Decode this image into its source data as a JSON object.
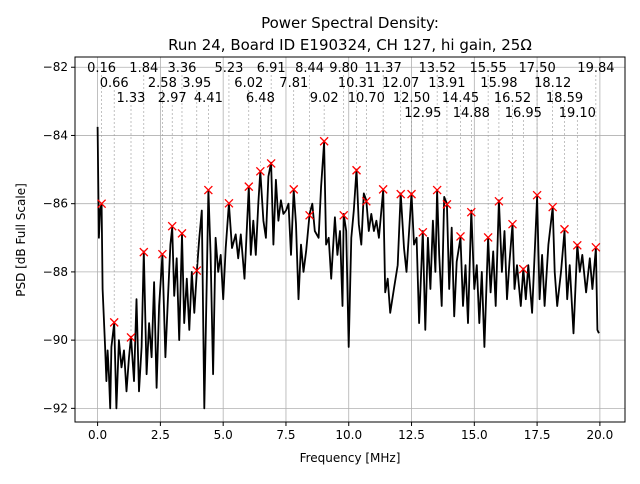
{
  "chart_data": {
    "type": "line",
    "title": "Power Spectral Density:",
    "subtitle": "Run 24, Board ID E190324, CH 127, hi gain, 25Ω",
    "xlabel": "Frequency [MHz]",
    "ylabel": "PSD [dB Full Scale]",
    "xlim": [
      -0.9,
      21.0
    ],
    "ylim": [
      -92.4,
      -81.7
    ],
    "xticks": [
      "0.0",
      "2.5",
      "5.0",
      "7.5",
      "10.0",
      "12.5",
      "15.0",
      "17.5",
      "20.0"
    ],
    "xtick_values": [
      0,
      2.5,
      5,
      7.5,
      10,
      12.5,
      15,
      17.5,
      20
    ],
    "yticks": [
      "−92",
      "−90",
      "−88",
      "−86",
      "−84",
      "−82"
    ],
    "ytick_values": [
      -92,
      -90,
      -88,
      -86,
      -84,
      -82
    ],
    "grid": true,
    "line_color": "#000000",
    "marker_color": "#ff0000",
    "trace": [
      [
        0.0,
        -83.75
      ],
      [
        0.05,
        -87
      ],
      [
        0.1,
        -86.2
      ],
      [
        0.16,
        -86.0
      ],
      [
        0.2,
        -88.5
      ],
      [
        0.3,
        -90.2
      ],
      [
        0.35,
        -91.2
      ],
      [
        0.4,
        -90.3
      ],
      [
        0.45,
        -91.0
      ],
      [
        0.5,
        -92.0
      ],
      [
        0.55,
        -90.2
      ],
      [
        0.66,
        -89.5
      ],
      [
        0.75,
        -92.0
      ],
      [
        0.85,
        -90.0
      ],
      [
        0.95,
        -90.8
      ],
      [
        1.05,
        -90.3
      ],
      [
        1.15,
        -91.5
      ],
      [
        1.25,
        -90.5
      ],
      [
        1.33,
        -89.9
      ],
      [
        1.45,
        -91.2
      ],
      [
        1.55,
        -88.8
      ],
      [
        1.65,
        -91.5
      ],
      [
        1.75,
        -90.2
      ],
      [
        1.84,
        -87.4
      ],
      [
        1.95,
        -91.0
      ],
      [
        2.05,
        -89.5
      ],
      [
        2.15,
        -90.5
      ],
      [
        2.25,
        -88.3
      ],
      [
        2.35,
        -91.4
      ],
      [
        2.45,
        -89.0
      ],
      [
        2.58,
        -87.5
      ],
      [
        2.7,
        -90.5
      ],
      [
        2.8,
        -88.8
      ],
      [
        2.9,
        -87.2
      ],
      [
        2.97,
        -86.7
      ],
      [
        3.05,
        -88.7
      ],
      [
        3.15,
        -87.6
      ],
      [
        3.25,
        -90.0
      ],
      [
        3.36,
        -86.9
      ],
      [
        3.45,
        -89.5
      ],
      [
        3.55,
        -88.2
      ],
      [
        3.65,
        -89.7
      ],
      [
        3.75,
        -88.0
      ],
      [
        3.85,
        -89.2
      ],
      [
        3.95,
        -88.0
      ],
      [
        4.05,
        -87.0
      ],
      [
        4.15,
        -86.2
      ],
      [
        4.25,
        -92.0
      ],
      [
        4.35,
        -88.2
      ],
      [
        4.41,
        -85.6
      ],
      [
        4.5,
        -87.5
      ],
      [
        4.6,
        -91.0
      ],
      [
        4.7,
        -87.0
      ],
      [
        4.8,
        -88.0
      ],
      [
        4.9,
        -87.5
      ],
      [
        5.0,
        -88.8
      ],
      [
        5.1,
        -87.3
      ],
      [
        5.23,
        -86.0
      ],
      [
        5.35,
        -87.3
      ],
      [
        5.5,
        -86.9
      ],
      [
        5.6,
        -87.6
      ],
      [
        5.7,
        -86.9
      ],
      [
        5.85,
        -88.2
      ],
      [
        6.02,
        -85.5
      ],
      [
        6.1,
        -87.5
      ],
      [
        6.2,
        -86.5
      ],
      [
        6.3,
        -87.5
      ],
      [
        6.4,
        -86.0
      ],
      [
        6.48,
        -85.05
      ],
      [
        6.6,
        -86.5
      ],
      [
        6.7,
        -87.0
      ],
      [
        6.8,
        -85.2
      ],
      [
        6.91,
        -84.8
      ],
      [
        7.0,
        -87.2
      ],
      [
        7.1,
        -85.3
      ],
      [
        7.2,
        -86.5
      ],
      [
        7.3,
        -85.9
      ],
      [
        7.4,
        -86.3
      ],
      [
        7.5,
        -86.2
      ],
      [
        7.6,
        -86.0
      ],
      [
        7.7,
        -87.5
      ],
      [
        7.81,
        -85.6
      ],
      [
        7.9,
        -86.6
      ],
      [
        8.0,
        -88.8
      ],
      [
        8.1,
        -87.2
      ],
      [
        8.2,
        -88.0
      ],
      [
        8.3,
        -87.4
      ],
      [
        8.44,
        -86.3
      ],
      [
        8.55,
        -86.0
      ],
      [
        8.65,
        -86.8
      ],
      [
        8.8,
        -87.0
      ],
      [
        8.9,
        -85.5
      ],
      [
        9.02,
        -84.2
      ],
      [
        9.1,
        -87.2
      ],
      [
        9.2,
        -87.0
      ],
      [
        9.3,
        -88.2
      ],
      [
        9.45,
        -86.4
      ],
      [
        9.55,
        -87.5
      ],
      [
        9.65,
        -86.8
      ],
      [
        9.75,
        -89.0
      ],
      [
        9.8,
        -86.3
      ],
      [
        9.9,
        -86.8
      ],
      [
        10.0,
        -90.2
      ],
      [
        10.1,
        -87.0
      ],
      [
        10.2,
        -86.2
      ],
      [
        10.31,
        -85.0
      ],
      [
        10.4,
        -86.6
      ],
      [
        10.5,
        -87.2
      ],
      [
        10.6,
        -85.7
      ],
      [
        10.7,
        -85.9
      ],
      [
        10.8,
        -86.8
      ],
      [
        10.9,
        -86.3
      ],
      [
        11.0,
        -86.8
      ],
      [
        11.1,
        -86.5
      ],
      [
        11.2,
        -87.0
      ],
      [
        11.37,
        -85.6
      ],
      [
        11.45,
        -88.6
      ],
      [
        11.55,
        -88.2
      ],
      [
        11.65,
        -89.2
      ],
      [
        11.8,
        -88.5
      ],
      [
        11.95,
        -87.8
      ],
      [
        12.07,
        -85.7
      ],
      [
        12.2,
        -87.3
      ],
      [
        12.3,
        -88.0
      ],
      [
        12.5,
        -85.7
      ],
      [
        12.6,
        -87.2
      ],
      [
        12.7,
        -87.0
      ],
      [
        12.8,
        -89.5
      ],
      [
        12.95,
        -86.8
      ],
      [
        13.05,
        -89.7
      ],
      [
        13.15,
        -87.0
      ],
      [
        13.25,
        -88.5
      ],
      [
        13.35,
        -86.5
      ],
      [
        13.45,
        -88.0
      ],
      [
        13.52,
        -85.6
      ],
      [
        13.6,
        -87.5
      ],
      [
        13.7,
        -89.0
      ],
      [
        13.8,
        -85.8
      ],
      [
        13.91,
        -86.0
      ],
      [
        14.0,
        -88.5
      ],
      [
        14.1,
        -86.7
      ],
      [
        14.2,
        -89.3
      ],
      [
        14.3,
        -87.7
      ],
      [
        14.45,
        -87.0
      ],
      [
        14.55,
        -89.0
      ],
      [
        14.65,
        -87.8
      ],
      [
        14.75,
        -89.5
      ],
      [
        14.88,
        -86.2
      ],
      [
        15.0,
        -88.5
      ],
      [
        15.1,
        -87.8
      ],
      [
        15.2,
        -89.5
      ],
      [
        15.3,
        -88.0
      ],
      [
        15.4,
        -90.2
      ],
      [
        15.55,
        -87.0
      ],
      [
        15.65,
        -88.6
      ],
      [
        15.75,
        -87.4
      ],
      [
        15.85,
        -89.0
      ],
      [
        15.98,
        -85.9
      ],
      [
        16.1,
        -88.0
      ],
      [
        16.2,
        -86.8
      ],
      [
        16.3,
        -88.8
      ],
      [
        16.4,
        -87.7
      ],
      [
        16.52,
        -86.6
      ],
      [
        16.6,
        -88.5
      ],
      [
        16.7,
        -87.8
      ],
      [
        16.85,
        -89.0
      ],
      [
        16.95,
        -87.9
      ],
      [
        17.05,
        -88.8
      ],
      [
        17.15,
        -87.8
      ],
      [
        17.3,
        -89.2
      ],
      [
        17.5,
        -85.8
      ],
      [
        17.6,
        -88.8
      ],
      [
        17.7,
        -87.5
      ],
      [
        17.8,
        -89.0
      ],
      [
        17.95,
        -87.2
      ],
      [
        18.12,
        -86.1
      ],
      [
        18.2,
        -88.0
      ],
      [
        18.3,
        -89.0
      ],
      [
        18.45,
        -88.0
      ],
      [
        18.59,
        -86.8
      ],
      [
        18.7,
        -88.8
      ],
      [
        18.8,
        -87.8
      ],
      [
        18.95,
        -89.8
      ],
      [
        19.1,
        -87.2
      ],
      [
        19.2,
        -88.0
      ],
      [
        19.3,
        -87.5
      ],
      [
        19.45,
        -88.6
      ],
      [
        19.6,
        -87.6
      ],
      [
        19.7,
        -88.5
      ],
      [
        19.84,
        -87.3
      ],
      [
        19.9,
        -89.7
      ],
      [
        19.96,
        -89.8
      ]
    ],
    "peaks": [
      {
        "label": "0.16",
        "x": 0.16,
        "y": -86.0
      },
      {
        "label": "0.66",
        "x": 0.66,
        "y": -89.48
      },
      {
        "label": "1.33",
        "x": 1.33,
        "y": -89.92
      },
      {
        "label": "1.84",
        "x": 1.84,
        "y": -87.42
      },
      {
        "label": "2.58",
        "x": 2.58,
        "y": -87.48
      },
      {
        "label": "2.97",
        "x": 2.97,
        "y": -86.66
      },
      {
        "label": "3.36",
        "x": 3.36,
        "y": -86.87
      },
      {
        "label": "3.95",
        "x": 3.95,
        "y": -87.96
      },
      {
        "label": "4.41",
        "x": 4.41,
        "y": -85.6
      },
      {
        "label": "5.23",
        "x": 5.23,
        "y": -85.99
      },
      {
        "label": "6.02",
        "x": 6.02,
        "y": -85.5
      },
      {
        "label": "6.48",
        "x": 6.48,
        "y": -85.05
      },
      {
        "label": "6.91",
        "x": 6.91,
        "y": -84.82
      },
      {
        "label": "7.81",
        "x": 7.81,
        "y": -85.58
      },
      {
        "label": "8.44",
        "x": 8.44,
        "y": -86.34
      },
      {
        "label": "9.02",
        "x": 9.02,
        "y": -84.17
      },
      {
        "label": "9.80",
        "x": 9.8,
        "y": -86.34
      },
      {
        "label": "10.31",
        "x": 10.31,
        "y": -85.02
      },
      {
        "label": "10.70",
        "x": 10.7,
        "y": -85.93
      },
      {
        "label": "11.37",
        "x": 11.37,
        "y": -85.58
      },
      {
        "label": "12.07",
        "x": 12.07,
        "y": -85.72
      },
      {
        "label": "12.50",
        "x": 12.5,
        "y": -85.72
      },
      {
        "label": "12.95",
        "x": 12.95,
        "y": -86.84
      },
      {
        "label": "13.52",
        "x": 13.52,
        "y": -85.6
      },
      {
        "label": "13.91",
        "x": 13.91,
        "y": -86.02
      },
      {
        "label": "14.45",
        "x": 14.45,
        "y": -86.96
      },
      {
        "label": "14.88",
        "x": 14.88,
        "y": -86.25
      },
      {
        "label": "15.55",
        "x": 15.55,
        "y": -86.99
      },
      {
        "label": "15.98",
        "x": 15.98,
        "y": -85.93
      },
      {
        "label": "16.52",
        "x": 16.52,
        "y": -86.6
      },
      {
        "label": "16.95",
        "x": 16.95,
        "y": -87.92
      },
      {
        "label": "17.50",
        "x": 17.5,
        "y": -85.75
      },
      {
        "label": "18.12",
        "x": 18.12,
        "y": -86.1
      },
      {
        "label": "18.59",
        "x": 18.59,
        "y": -86.75
      },
      {
        "label": "19.10",
        "x": 19.1,
        "y": -87.22
      },
      {
        "label": "19.84",
        "x": 19.84,
        "y": -87.28
      }
    ]
  }
}
